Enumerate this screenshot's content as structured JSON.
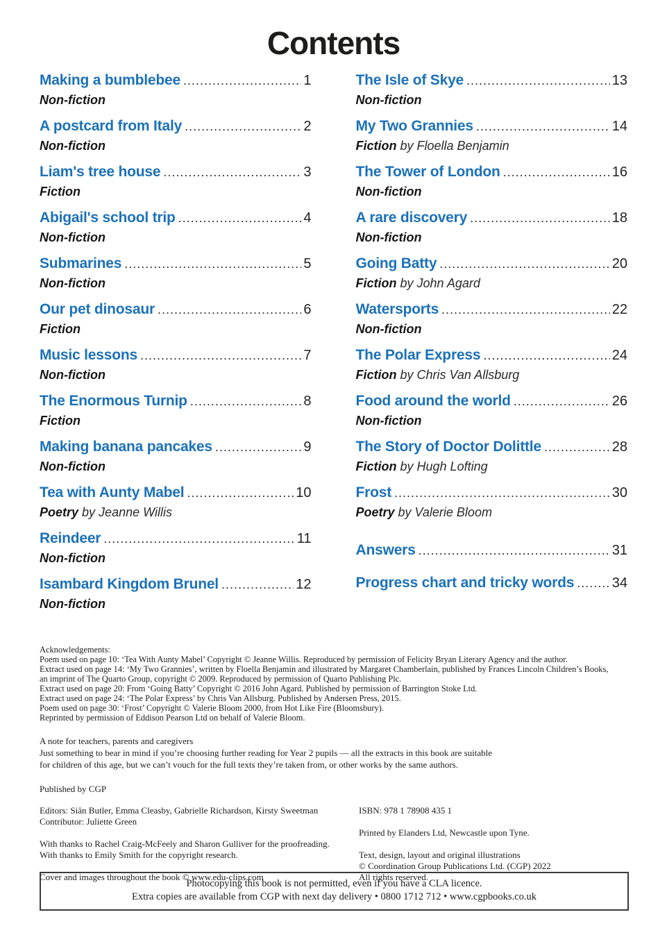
{
  "title": "Contents",
  "accent_color": "#1b71b8",
  "toc": {
    "left": [
      {
        "title": "Making a bumblebee",
        "page": "1",
        "genre": "Non-fiction"
      },
      {
        "title": "A postcard from Italy",
        "page": "2",
        "genre": "Non-fiction"
      },
      {
        "title": "Liam's tree house",
        "page": "3",
        "genre": "Fiction"
      },
      {
        "title": "Abigail's school trip",
        "page": "4",
        "genre": "Non-fiction"
      },
      {
        "title": "Submarines",
        "page": "5",
        "genre": "Non-fiction"
      },
      {
        "title": "Our pet dinosaur",
        "page": "6",
        "genre": "Fiction"
      },
      {
        "title": "Music lessons",
        "page": "7",
        "genre": "Non-fiction"
      },
      {
        "title": "The Enormous Turnip",
        "page": "8",
        "genre": "Fiction"
      },
      {
        "title": "Making banana pancakes",
        "page": "9",
        "genre": "Non-fiction"
      },
      {
        "title": "Tea with Aunty Mabel",
        "page": "10",
        "genre": "Poetry",
        "author": "by Jeanne Willis"
      },
      {
        "title": "Reindeer",
        "page": "11",
        "genre": "Non-fiction"
      },
      {
        "title": "Isambard Kingdom Brunel",
        "page": "12",
        "genre": "Non-fiction"
      }
    ],
    "right": [
      {
        "title": "The Isle of Skye",
        "page": "13",
        "genre": "Non-fiction"
      },
      {
        "title": "My Two Grannies",
        "page": "14",
        "genre": "Fiction",
        "author": "by Floella Benjamin"
      },
      {
        "title": "The Tower of London",
        "page": "16",
        "genre": "Non-fiction"
      },
      {
        "title": "A rare discovery",
        "page": "18",
        "genre": "Non-fiction"
      },
      {
        "title": "Going Batty",
        "page": "20",
        "genre": "Fiction",
        "author": "by John Agard"
      },
      {
        "title": "Watersports",
        "page": "22",
        "genre": "Non-fiction"
      },
      {
        "title": "The Polar Express",
        "page": "24",
        "genre": "Fiction",
        "author": "by Chris Van Allsburg"
      },
      {
        "title": "Food around the world",
        "page": "26",
        "genre": "Non-fiction"
      },
      {
        "title": "The Story of Doctor Dolittle",
        "page": "28",
        "genre": "Fiction",
        "author": "by Hugh Lofting"
      },
      {
        "title": "Frost",
        "page": "30",
        "genre": "Poetry",
        "author": "by Valerie Bloom"
      }
    ],
    "extras": [
      {
        "title": "Answers",
        "page": "31"
      },
      {
        "title": "Progress chart and tricky words",
        "page": "34"
      }
    ]
  },
  "acknowledgements": {
    "lines": [
      "Acknowledgements:",
      "Poem used on page 10: ‘Tea With Aunty Mabel’ Copyright © Jeanne Willis.  Reproduced by permission of Felicity Bryan Literary Agency and the author.",
      "Extract used on page 14: ‘My Two Grannies’, written by Floella Benjamin and illustrated by Margaret Chamberlain, published by Frances Lincoln Children’s Books,",
      "an imprint of The Quarto Group, copyright © 2009.  Reproduced by permission of Quarto Publishing Plc.",
      "Extract used on page 20: From ‘Going Batty’ Copyright © 2016 John Agard.  Published by permission of Barrington Stoke Ltd.",
      "Extract used on page 24: ‘The Polar Express’ by Chris Van Allsburg.  Published by Andersen Press, 2015.",
      "Poem used on page 30: ‘Frost’ Copyright © Valerie Bloom 2000, from Hot Like Fire (Bloomsbury).",
      "Reprinted by permission of Eddison Pearson Ltd on behalf of Valerie Bloom."
    ]
  },
  "teacher_note": {
    "lines": [
      "A note for teachers, parents and caregivers",
      "Just something to bear in mind if you’re choosing further reading for Year 2 pupils — all the extracts in this book are suitable",
      "for children of this age, but we can’t vouch for the full texts they’re taken from, or other works by the same authors."
    ]
  },
  "published_by": "Published by CGP",
  "credits": {
    "left_lines": [
      "Editors: Siân Butler, Emma Cleasby, Gabrielle Richardson, Kirsty Sweetman",
      "Contributor: Juliette Green",
      "",
      "With thanks to Rachel Craig-McFeely and Sharon Gulliver for the proofreading.",
      "With thanks to Emily Smith for the copyright research.",
      "",
      "Cover and images throughout the book © www.edu-clips.com"
    ],
    "right_lines": [
      "ISBN: 978 1 78908 435 1",
      "",
      "Printed by Elanders Ltd, Newcastle upon Tyne.",
      "",
      "Text, design, layout and original illustrations",
      "© Coordination Group Publications Ltd. (CGP) 2022",
      "All rights reserved."
    ]
  },
  "footer_box": {
    "line1": "Photocopying this book is not permitted, even if you have a CLA licence.",
    "line2": "Extra copies are available from CGP with next day delivery  •  0800 1712 712  •  www.cgpbooks.co.uk"
  }
}
